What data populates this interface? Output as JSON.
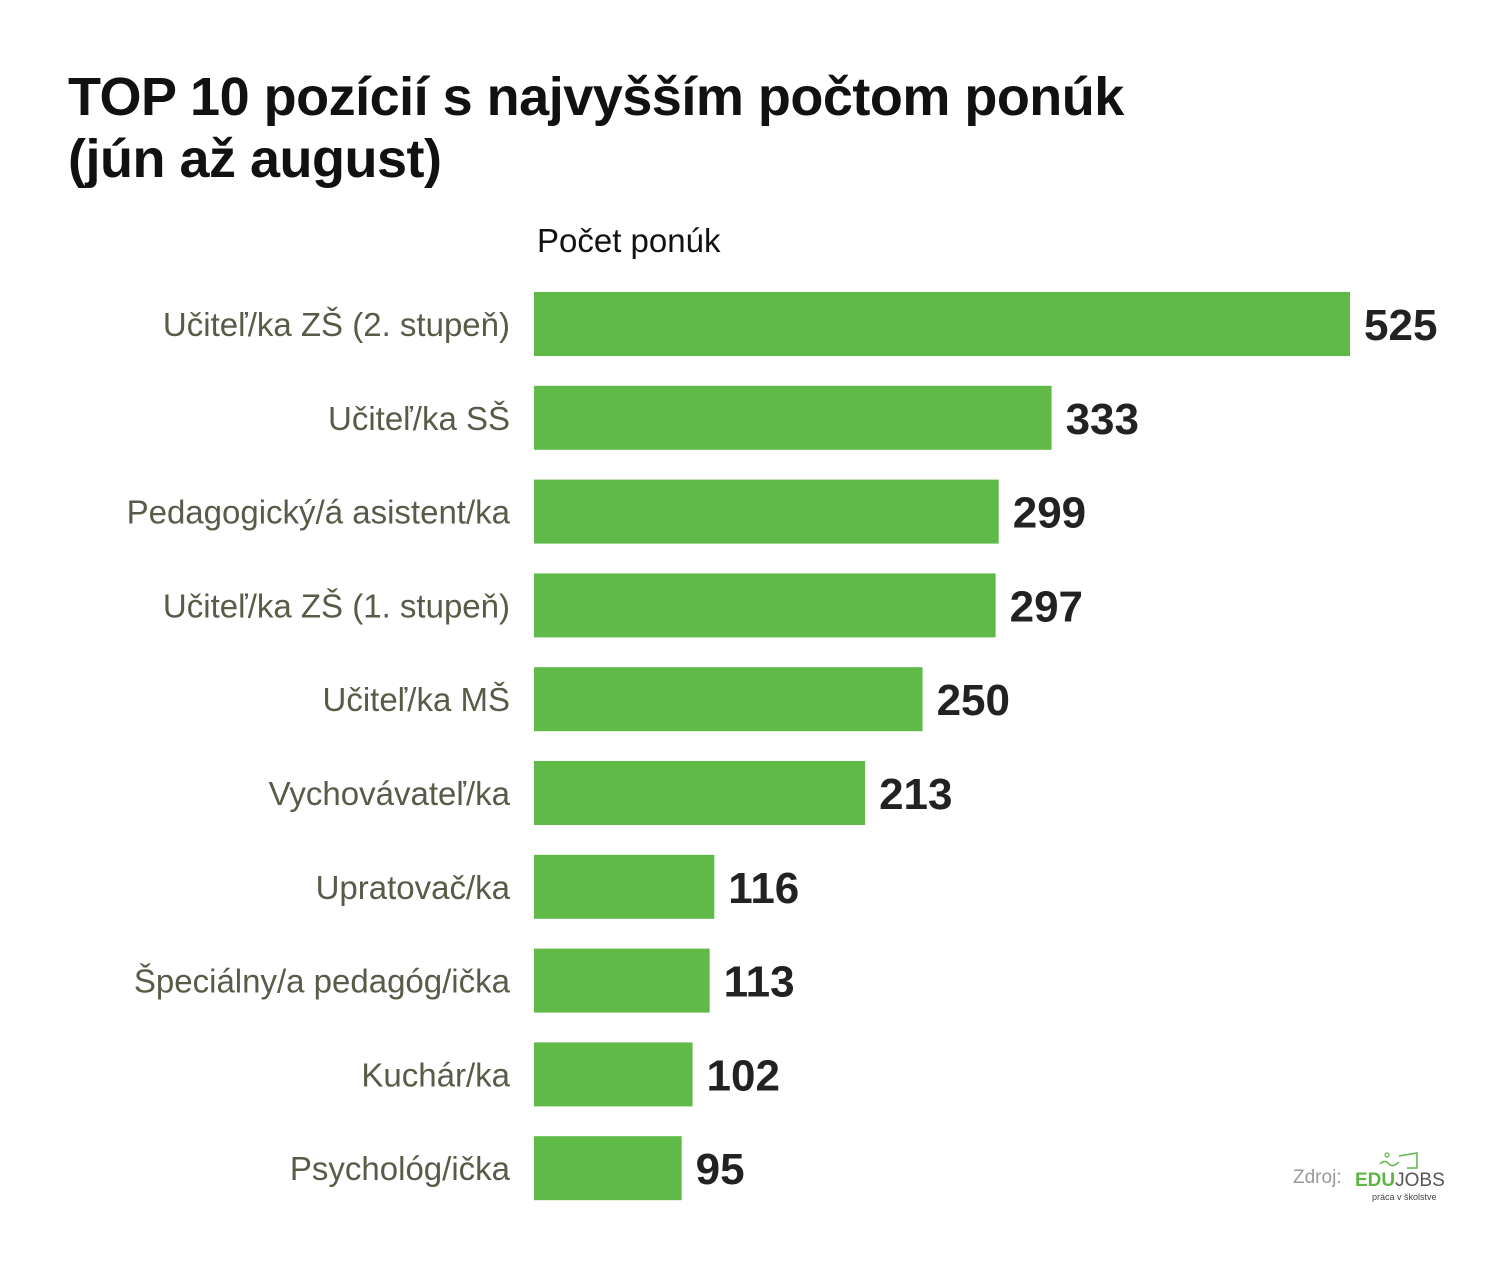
{
  "chart_data": {
    "type": "bar",
    "orientation": "horizontal",
    "title": "TOP 10 pozícií s najvyšším počtom ponúk",
    "subtitle": "(jún až august)",
    "xlabel": "Počet ponúk",
    "ylabel": "",
    "categories": [
      "Učiteľ/ka ZŠ (2. stupeň)",
      "Učiteľ/ka SŠ",
      "Pedagogický/á asistent/ka",
      "Učiteľ/ka ZŠ (1. stupeň)",
      "Učiteľ/ka MŠ",
      "Vychovávateľ/ka",
      "Upratovač/ka",
      "Špeciálny/a pedagóg/ička",
      "Kuchár/ka",
      "Psychológ/ička"
    ],
    "values": [
      525,
      333,
      299,
      297,
      250,
      213,
      116,
      113,
      102,
      95
    ],
    "xlim": [
      0,
      525
    ],
    "grid": false,
    "bar_color": "#5fba47"
  },
  "source": {
    "label": "Zdroj:",
    "logo_edu": "EDU",
    "logo_jobs": "JOBS",
    "logo_tagline": "práca v školstve"
  }
}
